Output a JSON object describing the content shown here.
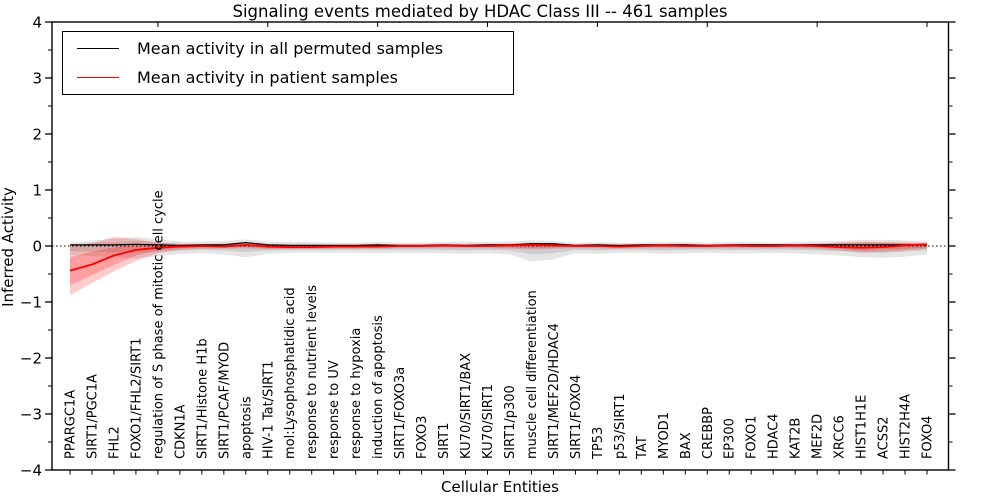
{
  "title": "Signaling events mediated by HDAC Class III -- 461 samples",
  "legend": [
    {
      "label": "Mean activity in all permuted samples",
      "color": "#000000"
    },
    {
      "label": "Mean activity in patient samples",
      "color": "#ff0000"
    }
  ],
  "axes": {
    "xlabel": "Cellular Entities",
    "ylabel": "Inferred Activity",
    "ytick_labels": [
      "4",
      "3",
      "2",
      "1",
      "0",
      "−1",
      "−2",
      "−3",
      "−4"
    ],
    "ytick_values": [
      4,
      3,
      2,
      1,
      0,
      -1,
      -2,
      -3,
      -4
    ]
  },
  "chart_data": {
    "type": "line",
    "title": "Signaling events mediated by HDAC Class III -- 461 samples",
    "xlabel": "Cellular Entities",
    "ylabel": "Inferred Activity",
    "ylim": [
      -4,
      4
    ],
    "grid": false,
    "legend_position": "upper left",
    "zero_line": true,
    "categories": [
      "PPARGC1A",
      "SIRT1/PGC1A",
      "FHL2",
      "FOXO1/FHL2/SIRT1",
      "regulation of S phase of mitotic cell cycle",
      "CDKN1A",
      "SIRT1/Histone H1b",
      "SIRT1/PCAF/MYOD",
      "apoptosis",
      "HIV-1 Tat/SIRT1",
      "mol:Lysophosphatidic acid",
      "response to nutrient levels",
      "response to UV",
      "response to hypoxia",
      "induction of apoptosis",
      "SIRT1/FOXO3a",
      "FOXO3",
      "SIRT1",
      "KU70/SIRT1/BAX",
      "KU70/SIRT1",
      "SIRT1/p300",
      "muscle cell differentiation",
      "SIRT1/MEF2D/HDAC4",
      "SIRT1/FOXO4",
      "TP53",
      "p53/SIRT1",
      "TAT",
      "MYOD1",
      "BAX",
      "CREBBP",
      "EP300",
      "FOXO1",
      "HDAC4",
      "KAT2B",
      "MEF2D",
      "XRCC6",
      "HIST1H1E",
      "ACSS2",
      "HIST2H4A",
      "FOXO4"
    ],
    "series": [
      {
        "name": "Mean activity in all permuted samples",
        "color": "#000000",
        "values": [
          0.02,
          0.02,
          0.02,
          0.03,
          0.02,
          0.01,
          0.02,
          0.02,
          0.06,
          0.02,
          0.01,
          0.01,
          0.01,
          0.01,
          0.02,
          0.01,
          0.01,
          0.02,
          0.01,
          0.02,
          0.02,
          0.04,
          0.04,
          0.01,
          0.02,
          0.01,
          0.02,
          0.02,
          0.02,
          0.01,
          0.02,
          0.02,
          0.02,
          0.02,
          0.02,
          0.02,
          0.02,
          0.02,
          0.02,
          0.02
        ]
      },
      {
        "name": "Mean activity in patient samples",
        "color": "#ff0000",
        "values": [
          -0.44,
          -0.33,
          -0.17,
          -0.07,
          -0.03,
          -0.01,
          0.0,
          -0.01,
          0.02,
          -0.01,
          -0.02,
          -0.02,
          -0.01,
          -0.01,
          -0.01,
          0.0,
          0.0,
          0.01,
          0.0,
          0.0,
          0.01,
          0.02,
          0.01,
          0.0,
          0.0,
          -0.01,
          0.0,
          0.01,
          0.0,
          0.0,
          0.01,
          0.0,
          0.0,
          0.01,
          0.0,
          -0.02,
          -0.03,
          -0.02,
          0.01,
          0.03
        ]
      }
    ],
    "bands": [
      {
        "name": "permuted-band-outer",
        "color": "rgba(0,0,0,0.10)",
        "top": [
          0.06,
          0.1,
          0.13,
          0.16,
          0.12,
          0.08,
          0.08,
          0.09,
          0.12,
          0.08,
          0.07,
          0.07,
          0.06,
          0.06,
          0.07,
          0.06,
          0.06,
          0.07,
          0.08,
          0.07,
          0.08,
          0.1,
          0.09,
          0.06,
          0.07,
          0.06,
          0.06,
          0.07,
          0.07,
          0.06,
          0.07,
          0.07,
          0.06,
          0.07,
          0.08,
          0.09,
          0.11,
          0.11,
          0.1,
          0.08
        ],
        "bottom": [
          -0.16,
          -0.18,
          -0.2,
          -0.22,
          -0.18,
          -0.14,
          -0.13,
          -0.15,
          -0.2,
          -0.14,
          -0.12,
          -0.12,
          -0.12,
          -0.12,
          -0.13,
          -0.12,
          -0.12,
          -0.13,
          -0.14,
          -0.13,
          -0.15,
          -0.28,
          -0.24,
          -0.13,
          -0.14,
          -0.12,
          -0.12,
          -0.14,
          -0.13,
          -0.12,
          -0.13,
          -0.13,
          -0.12,
          -0.13,
          -0.15,
          -0.17,
          -0.2,
          -0.21,
          -0.19,
          -0.15
        ]
      },
      {
        "name": "permuted-band-inner",
        "color": "rgba(0,0,0,0.10)",
        "top": [
          0.03,
          0.06,
          0.07,
          0.09,
          0.07,
          0.04,
          0.04,
          0.05,
          0.07,
          0.04,
          0.04,
          0.04,
          0.03,
          0.03,
          0.04,
          0.03,
          0.03,
          0.04,
          0.04,
          0.04,
          0.04,
          0.06,
          0.05,
          0.03,
          0.04,
          0.03,
          0.03,
          0.04,
          0.04,
          0.03,
          0.04,
          0.04,
          0.03,
          0.04,
          0.04,
          0.05,
          0.06,
          0.06,
          0.06,
          0.04
        ],
        "bottom": [
          -0.09,
          -0.1,
          -0.11,
          -0.12,
          -0.1,
          -0.08,
          -0.07,
          -0.08,
          -0.11,
          -0.08,
          -0.07,
          -0.07,
          -0.07,
          -0.07,
          -0.07,
          -0.07,
          -0.07,
          -0.07,
          -0.08,
          -0.07,
          -0.08,
          -0.15,
          -0.13,
          -0.07,
          -0.08,
          -0.07,
          -0.07,
          -0.08,
          -0.07,
          -0.07,
          -0.07,
          -0.07,
          -0.07,
          -0.07,
          -0.08,
          -0.09,
          -0.11,
          -0.12,
          -0.1,
          -0.08
        ]
      },
      {
        "name": "patient-band-outer",
        "color": "rgba(255,0,0,0.20)",
        "top": [
          0.0,
          0.05,
          0.16,
          0.12,
          0.06,
          0.04,
          0.03,
          0.03,
          0.04,
          0.03,
          0.03,
          0.03,
          0.03,
          0.03,
          0.03,
          0.03,
          0.03,
          0.03,
          0.03,
          0.03,
          0.04,
          0.05,
          0.04,
          0.03,
          0.03,
          0.03,
          0.03,
          0.03,
          0.03,
          0.03,
          0.03,
          0.03,
          0.03,
          0.03,
          0.04,
          0.06,
          0.08,
          0.07,
          0.06,
          0.06
        ],
        "bottom": [
          -0.88,
          -0.66,
          -0.45,
          -0.27,
          -0.13,
          -0.07,
          -0.05,
          -0.05,
          -0.04,
          -0.06,
          -0.06,
          -0.06,
          -0.05,
          -0.05,
          -0.05,
          -0.04,
          -0.04,
          -0.04,
          -0.04,
          -0.04,
          -0.05,
          -0.06,
          -0.05,
          -0.04,
          -0.04,
          -0.05,
          -0.04,
          -0.04,
          -0.04,
          -0.04,
          -0.04,
          -0.04,
          -0.04,
          -0.04,
          -0.05,
          -0.08,
          -0.12,
          -0.11,
          -0.08,
          -0.05
        ]
      },
      {
        "name": "patient-band-inner",
        "color": "rgba(255,0,0,0.22)",
        "top": [
          -0.2,
          -0.1,
          -0.02,
          0.02,
          0.03,
          0.02,
          0.02,
          0.02,
          0.03,
          0.02,
          0.02,
          0.02,
          0.02,
          0.02,
          0.02,
          0.02,
          0.02,
          0.02,
          0.02,
          0.02,
          0.03,
          0.03,
          0.03,
          0.02,
          0.02,
          0.02,
          0.02,
          0.02,
          0.02,
          0.02,
          0.02,
          0.02,
          0.02,
          0.02,
          0.03,
          0.04,
          0.05,
          0.05,
          0.04,
          0.04
        ],
        "bottom": [
          -0.7,
          -0.52,
          -0.34,
          -0.17,
          -0.08,
          -0.04,
          -0.03,
          -0.03,
          -0.02,
          -0.04,
          -0.04,
          -0.04,
          -0.03,
          -0.03,
          -0.03,
          -0.02,
          -0.02,
          -0.02,
          -0.02,
          -0.02,
          -0.03,
          -0.04,
          -0.03,
          -0.02,
          -0.02,
          -0.03,
          -0.02,
          -0.02,
          -0.02,
          -0.02,
          -0.02,
          -0.02,
          -0.02,
          -0.02,
          -0.03,
          -0.05,
          -0.08,
          -0.07,
          -0.05,
          -0.03
        ]
      }
    ]
  }
}
